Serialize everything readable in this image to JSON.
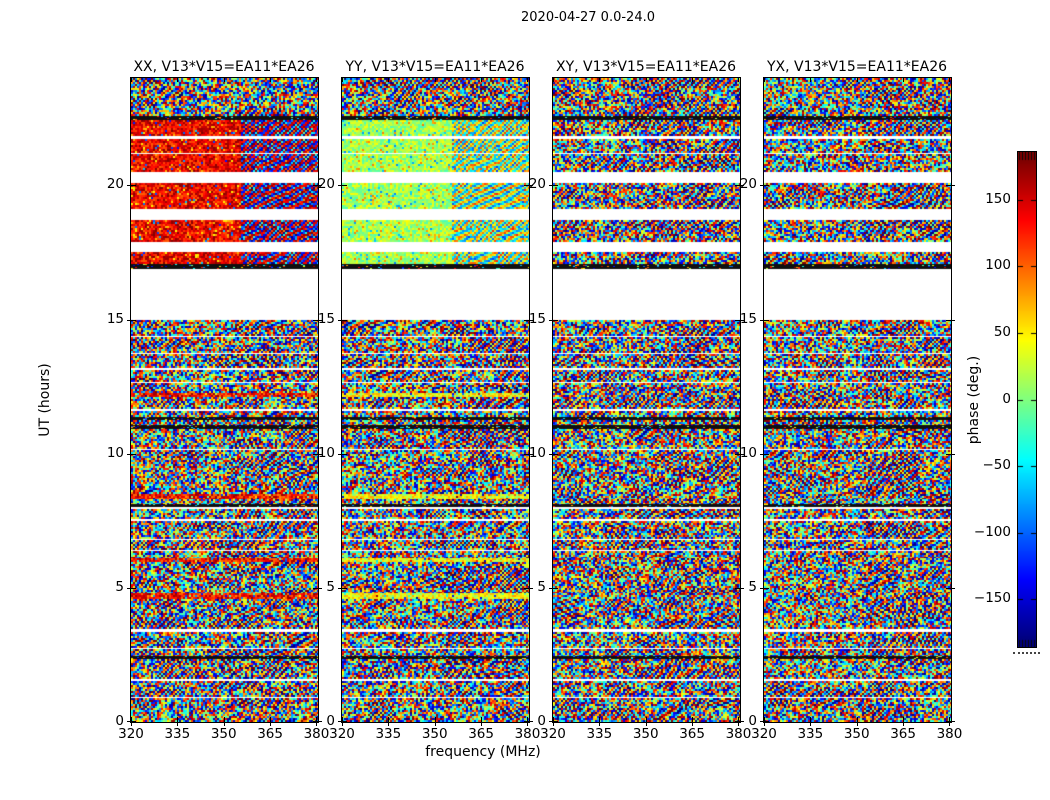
{
  "chart_data": {
    "type": "heatmap",
    "title": "2020-04-27 0.0-24.0",
    "xlabel": "frequency (MHz)",
    "ylabel": "UT (hours)",
    "colorbar_label": "phase (deg.)",
    "colormap": "jet",
    "value_unit": "degrees",
    "value_range": [
      -180,
      180
    ],
    "x_range_mhz": [
      320,
      380.5
    ],
    "y_range_hours": [
      0,
      24
    ],
    "x_ticks": [
      320,
      335,
      350,
      365,
      380
    ],
    "y_ticks": [
      0,
      5,
      10,
      15,
      20
    ],
    "colorbar_ticks": [
      {
        "value": 150,
        "label": "150"
      },
      {
        "value": 100,
        "label": "100"
      },
      {
        "value": 50,
        "label": "50"
      },
      {
        "value": 0,
        "label": "0"
      },
      {
        "value": -50,
        "label": "−50"
      },
      {
        "value": -100,
        "label": "−100"
      },
      {
        "value": -150,
        "label": "−150"
      }
    ],
    "panels": [
      {
        "pol": "XX",
        "title": "XX, V13*V15=EA11*EA26",
        "calibrator_tint": "red-orange"
      },
      {
        "pol": "YY",
        "title": "YY, V13*V15=EA11*EA26",
        "calibrator_tint": "green-yellow"
      },
      {
        "pol": "XY",
        "title": "XY, V13*V15=EA11*EA26",
        "calibrator_tint": "none"
      },
      {
        "pol": "YX",
        "title": "YX, V13*V15=EA11*EA26",
        "calibrator_tint": "none"
      }
    ],
    "bands": [
      [
        24.0,
        22.6,
        "noise"
      ],
      [
        22.6,
        22.42,
        "line"
      ],
      [
        22.42,
        21.85,
        "cal"
      ],
      [
        21.85,
        21.72,
        "gap"
      ],
      [
        21.72,
        21.25,
        "cal"
      ],
      [
        21.25,
        21.18,
        "gap"
      ],
      [
        21.18,
        20.5,
        "cal"
      ],
      [
        20.5,
        20.1,
        "gap"
      ],
      [
        20.1,
        19.1,
        "cal"
      ],
      [
        19.1,
        18.7,
        "gap"
      ],
      [
        18.7,
        17.9,
        "cal"
      ],
      [
        17.9,
        17.5,
        "gap"
      ],
      [
        17.5,
        17.05,
        "cal"
      ],
      [
        17.05,
        16.88,
        "line"
      ],
      [
        16.88,
        15.0,
        "gap"
      ],
      [
        15.0,
        14.42,
        "noise"
      ],
      [
        14.42,
        14.35,
        "gap"
      ],
      [
        14.35,
        13.8,
        "noise"
      ],
      [
        13.8,
        13.73,
        "gap"
      ],
      [
        13.73,
        13.2,
        "noise"
      ],
      [
        13.2,
        13.13,
        "gap"
      ],
      [
        13.13,
        12.7,
        "noise"
      ],
      [
        12.7,
        12.63,
        "gap"
      ],
      [
        12.63,
        12.25,
        "noise"
      ],
      [
        12.25,
        12.1,
        "streak"
      ],
      [
        12.1,
        11.65,
        "noise"
      ],
      [
        11.65,
        11.58,
        "gap"
      ],
      [
        11.58,
        11.35,
        "noise"
      ],
      [
        11.35,
        11.25,
        "line"
      ],
      [
        11.25,
        11.05,
        "noise"
      ],
      [
        11.05,
        10.93,
        "line"
      ],
      [
        10.93,
        10.2,
        "noise"
      ],
      [
        10.2,
        10.13,
        "gap"
      ],
      [
        10.13,
        8.55,
        "noise"
      ],
      [
        8.55,
        8.48,
        "gap"
      ],
      [
        8.48,
        8.3,
        "streak"
      ],
      [
        8.3,
        8.12,
        "noise"
      ],
      [
        8.12,
        8.02,
        "line"
      ],
      [
        8.02,
        7.92,
        "gap"
      ],
      [
        7.92,
        7.55,
        "noise"
      ],
      [
        7.55,
        7.48,
        "gap"
      ],
      [
        7.48,
        6.85,
        "noise"
      ],
      [
        6.85,
        6.78,
        "gap"
      ],
      [
        6.78,
        6.45,
        "noise"
      ],
      [
        6.45,
        6.38,
        "gap"
      ],
      [
        6.38,
        6.12,
        "noise"
      ],
      [
        6.12,
        5.95,
        "streak"
      ],
      [
        5.95,
        4.8,
        "noise"
      ],
      [
        4.8,
        4.6,
        "streak"
      ],
      [
        4.6,
        3.45,
        "noise"
      ],
      [
        3.45,
        3.35,
        "gap"
      ],
      [
        3.35,
        2.8,
        "noise"
      ],
      [
        2.8,
        2.73,
        "gap"
      ],
      [
        2.73,
        2.45,
        "noise"
      ],
      [
        2.45,
        2.33,
        "line"
      ],
      [
        2.33,
        2.18,
        "noise"
      ],
      [
        2.18,
        2.11,
        "gap"
      ],
      [
        2.11,
        1.6,
        "noise"
      ],
      [
        1.6,
        1.53,
        "gap"
      ],
      [
        1.53,
        0.95,
        "noise"
      ],
      [
        0.95,
        0.88,
        "gap"
      ],
      [
        0.88,
        0.0,
        "noise"
      ]
    ]
  }
}
